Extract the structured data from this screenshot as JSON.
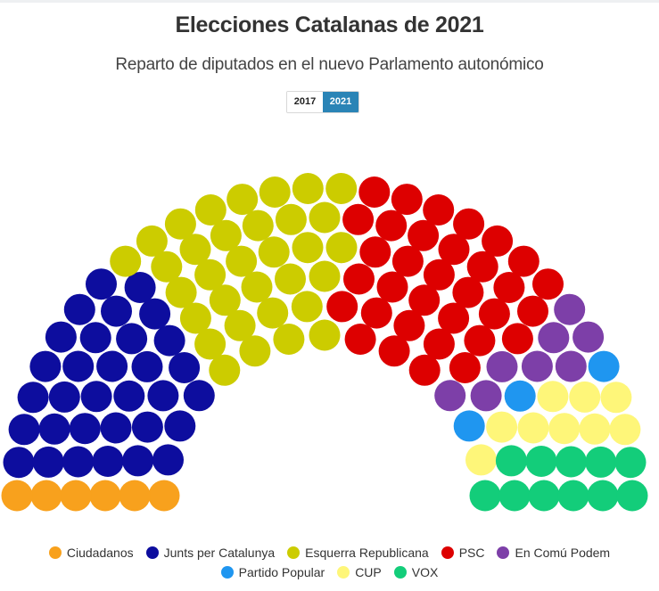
{
  "title": "Elecciones Catalanas de 2021",
  "subtitle": "Reparto de diputados en el nuevo Parlamento autonómico",
  "year_toggle": {
    "options": [
      "2017",
      "2021"
    ],
    "selected": "2021"
  },
  "chart_data": {
    "type": "parliament",
    "title": "Elecciones Catalanas de 2021",
    "subtitle": "Reparto de diputados en el nuevo Parlamento autonómico",
    "total_seats": 135,
    "legend_position": "bottom",
    "series": [
      {
        "name": "Ciudadanos",
        "value": 6,
        "color": "#f8a11d"
      },
      {
        "name": "Junts per Catalunya",
        "value": 32,
        "color": "#0d0d9e"
      },
      {
        "name": "Esquerra Republicana",
        "value": 33,
        "color": "#cccc00"
      },
      {
        "name": "PSC",
        "value": 33,
        "color": "#dd0000"
      },
      {
        "name": "En Comú Podem",
        "value": 8,
        "color": "#7d3fa8"
      },
      {
        "name": "Partido Popular",
        "value": 3,
        "color": "#1f96f0"
      },
      {
        "name": "CUP",
        "value": 9,
        "color": "#fef679"
      },
      {
        "name": "VOX",
        "value": 11,
        "color": "#13cd7a"
      }
    ]
  },
  "legend": {
    "row1": [
      "Ciudadanos",
      "Junts per Catalunya",
      "Esquerra Republicana",
      "PSC",
      "En Comú Podem"
    ],
    "row2": [
      "Partido Popular",
      "CUP",
      "VOX"
    ]
  }
}
